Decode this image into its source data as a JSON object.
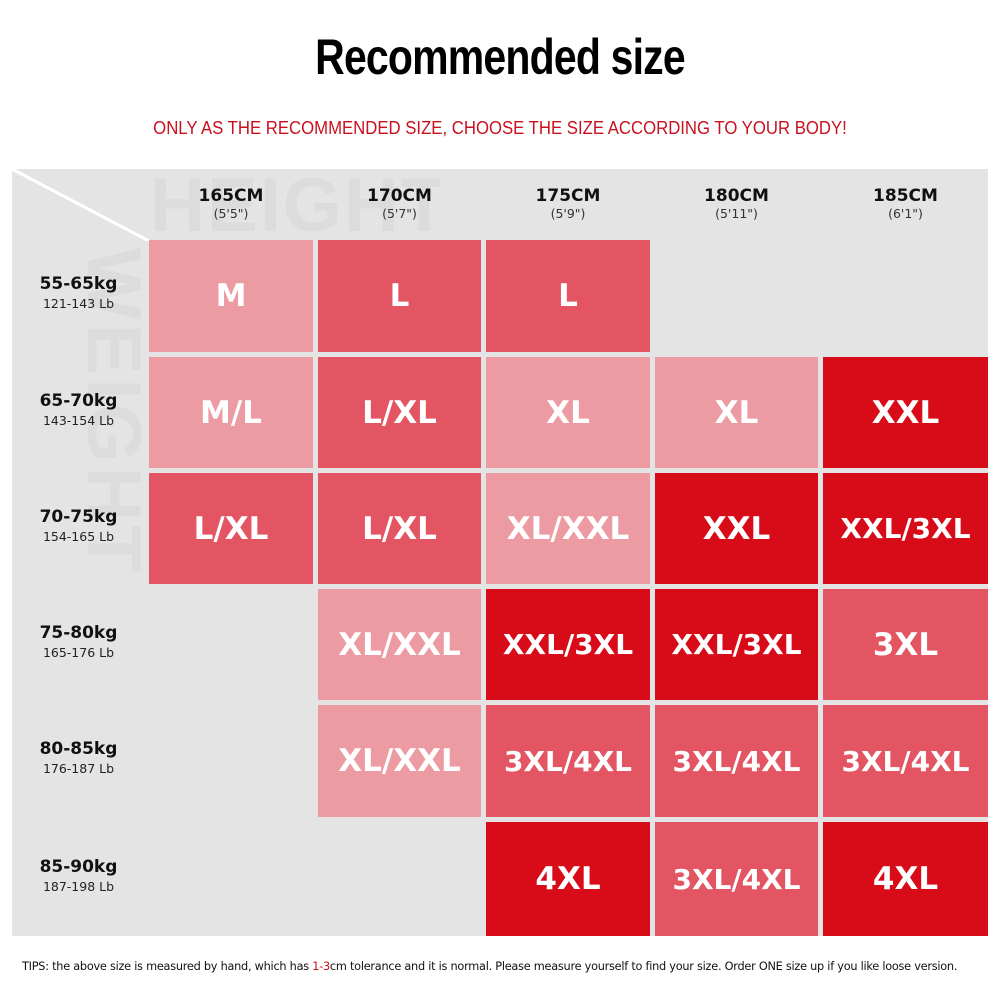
{
  "header": {
    "title": "Recommended size",
    "subtitle": "ONLY AS THE RECOMMENDED SIZE, CHOOSE THE SIZE ACCORDING TO YOUR BODY!"
  },
  "watermarks": {
    "height": "HEIGHT",
    "weight": "WEIGHT"
  },
  "colors": {
    "light": "#ED9BA3",
    "medium": "#E35563",
    "strong": "#D80C19",
    "empty": "#E4E4E4",
    "accent_text": "#C8101E"
  },
  "columns": [
    {
      "cm": "165CM",
      "ft": "(5'5\")"
    },
    {
      "cm": "170CM",
      "ft": "(5'7\")"
    },
    {
      "cm": "175CM",
      "ft": "(5'9\")"
    },
    {
      "cm": "180CM",
      "ft": "(5'11\")"
    },
    {
      "cm": "185CM",
      "ft": "(6'1\")"
    }
  ],
  "rows": [
    {
      "kg": "55-65kg",
      "lb": "121-143 Lb",
      "cells": [
        {
          "size": "M",
          "tone": "light"
        },
        {
          "size": "L",
          "tone": "medium"
        },
        {
          "size": "L",
          "tone": "medium"
        },
        {
          "size": "",
          "tone": "empty"
        },
        {
          "size": "",
          "tone": "empty"
        }
      ]
    },
    {
      "kg": "65-70kg",
      "lb": "143-154 Lb",
      "cells": [
        {
          "size": "M/L",
          "tone": "light"
        },
        {
          "size": "L/XL",
          "tone": "medium"
        },
        {
          "size": "XL",
          "tone": "light"
        },
        {
          "size": "XL",
          "tone": "light"
        },
        {
          "size": "XXL",
          "tone": "strong"
        }
      ]
    },
    {
      "kg": "70-75kg",
      "lb": "154-165 Lb",
      "cells": [
        {
          "size": "L/XL",
          "tone": "medium"
        },
        {
          "size": "L/XL",
          "tone": "medium"
        },
        {
          "size": "XL/XXL",
          "tone": "light"
        },
        {
          "size": "XXL",
          "tone": "strong"
        },
        {
          "size": "XXL/3XL",
          "tone": "strong"
        }
      ]
    },
    {
      "kg": "75-80kg",
      "lb": "165-176 Lb",
      "cells": [
        {
          "size": "",
          "tone": "empty"
        },
        {
          "size": "XL/XXL",
          "tone": "light"
        },
        {
          "size": "XXL/3XL",
          "tone": "strong"
        },
        {
          "size": "XXL/3XL",
          "tone": "strong"
        },
        {
          "size": "3XL",
          "tone": "medium"
        }
      ]
    },
    {
      "kg": "80-85kg",
      "lb": "176-187 Lb",
      "cells": [
        {
          "size": "",
          "tone": "empty"
        },
        {
          "size": "XL/XXL",
          "tone": "light"
        },
        {
          "size": "3XL/4XL",
          "tone": "medium"
        },
        {
          "size": "3XL/4XL",
          "tone": "medium"
        },
        {
          "size": "3XL/4XL",
          "tone": "medium"
        }
      ]
    },
    {
      "kg": "85-90kg",
      "lb": "187-198 Lb",
      "cells": [
        {
          "size": "",
          "tone": "empty"
        },
        {
          "size": "",
          "tone": "empty"
        },
        {
          "size": "4XL",
          "tone": "strong"
        },
        {
          "size": "3XL/4XL",
          "tone": "medium"
        },
        {
          "size": "4XL",
          "tone": "strong"
        }
      ]
    }
  ],
  "tips": {
    "prefix": "TIPS:  the above size is measured by hand, which has ",
    "highlight": "1-3",
    "suffix": "cm tolerance and it is normal. Please measure yourself to find your size. Order ONE size up if you like loose version."
  }
}
